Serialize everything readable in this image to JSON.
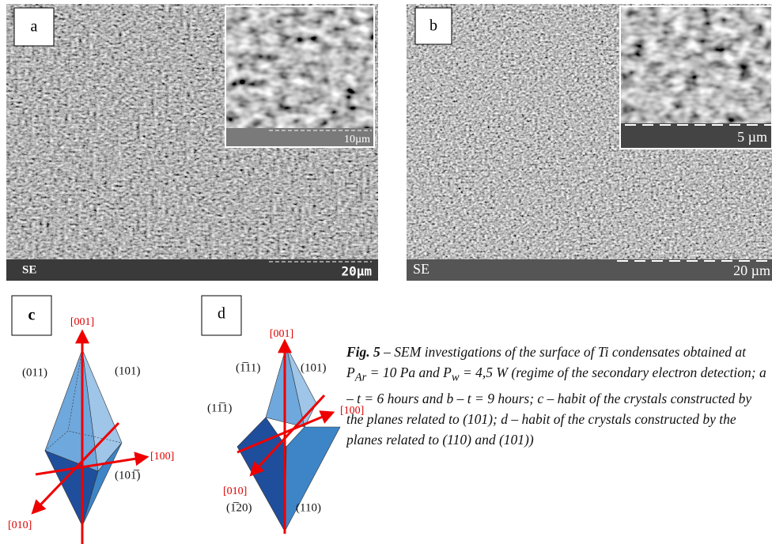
{
  "panels": [
    {
      "label": "a",
      "detector": "SE",
      "scale": "20µm",
      "inset_scale": "10µm"
    },
    {
      "label": "b",
      "detector": "SE",
      "scale": "20 µm",
      "inset_scale": "5 µm"
    }
  ],
  "diagrams": [
    {
      "label": "c",
      "axes": [
        "[001]",
        "[100]",
        "[010]"
      ],
      "planes": [
        "(011)",
        "(101)",
        "(101̅)"
      ]
    },
    {
      "label": "d",
      "axes": [
        "[001]",
        "[100]",
        "[010]"
      ],
      "planes": [
        "(1̅11)",
        "(101)",
        "(11̅1)",
        "(1̅20)",
        "(110)"
      ]
    }
  ],
  "caption": {
    "label": "Fig. 5",
    "parts": [
      "– SEM investigations of the surface of Ti condensates obtained at P",
      "Ar",
      " = 10 Pa and P",
      "w",
      " = 4,5 W (regime of the secondary electron detection; a – t = 6 hours and b – t = 9 hours; c – habit of the crystals constructed by the planes related to (101); d – habit of the crystals constructed by the planes related to (110) and (101))"
    ]
  }
}
